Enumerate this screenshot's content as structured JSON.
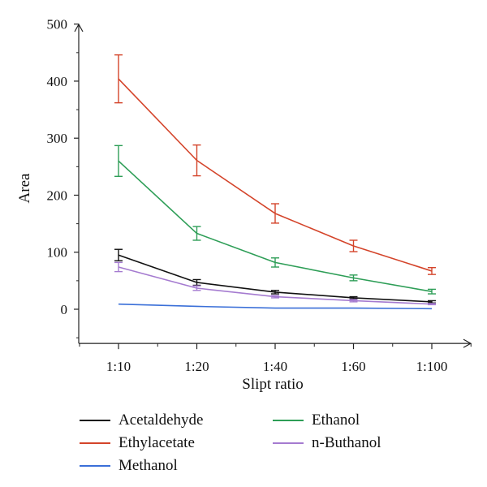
{
  "chart_data": {
    "type": "line",
    "xlabel": "Slipt ratio",
    "ylabel": "Area",
    "categories": [
      "1:10",
      "1:20",
      "1:40",
      "1:60",
      "1:100"
    ],
    "y_ticks": [
      "0",
      "100",
      "200",
      "300",
      "400",
      "500"
    ],
    "ylim": [
      -60,
      510
    ],
    "grid": false,
    "legend_position": "bottom",
    "series": [
      {
        "name": "Acetaldehyde",
        "color": "#111111",
        "values": [
          95,
          47,
          30,
          20,
          13
        ],
        "errors": [
          10,
          5,
          3,
          2,
          2
        ]
      },
      {
        "name": "Ethylacetate",
        "color": "#d4442a",
        "values": [
          404,
          261,
          168,
          111,
          67
        ],
        "errors": [
          42,
          27,
          17,
          10,
          6
        ]
      },
      {
        "name": "Methanol",
        "color": "#3a6fd8",
        "values": [
          9,
          5,
          2,
          2,
          1
        ],
        "errors": [
          0,
          0,
          0,
          0,
          0
        ]
      },
      {
        "name": "Ethanol",
        "color": "#2e9e57",
        "values": [
          260,
          133,
          82,
          55,
          31
        ],
        "errors": [
          27,
          12,
          8,
          5,
          4
        ]
      },
      {
        "name": "n-Buthanol",
        "color": "#a57bd0",
        "values": [
          74,
          37,
          22,
          15,
          9
        ],
        "errors": [
          8,
          4,
          2,
          2,
          1
        ]
      }
    ]
  }
}
